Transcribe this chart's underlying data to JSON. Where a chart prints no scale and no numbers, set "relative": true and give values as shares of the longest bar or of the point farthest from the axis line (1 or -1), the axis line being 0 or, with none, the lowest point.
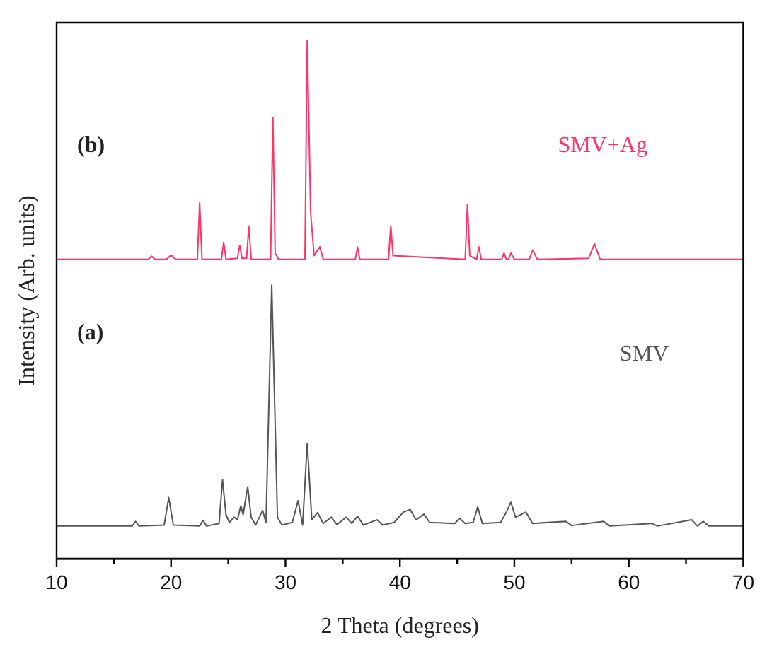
{
  "chart_data": {
    "type": "line",
    "xlabel": "2 Theta (degrees)",
    "ylabel": "Intensity (Arb. units)",
    "relative": true,
    "legend": false,
    "grid": false,
    "marker": "none",
    "line_style": "solid",
    "xlim": [
      10,
      70
    ],
    "xticks": [
      10,
      {
        "value": 15,
        "label": null
      },
      20,
      {
        "value": 25,
        "label": null
      },
      30,
      {
        "value": 35,
        "label": null
      },
      40,
      {
        "value": 45,
        "label": null
      },
      50,
      {
        "value": 55,
        "label": null
      },
      60,
      {
        "value": 65,
        "label": null
      },
      70
    ],
    "annotations": [
      "(b)",
      "(a)"
    ],
    "series": [
      {
        "name": "SMV+Ag",
        "color": "#ff3366",
        "x": [
          10,
          18.0,
          18.3,
          18.6,
          19.6,
          20.0,
          20.4,
          22.3,
          22.5,
          22.7,
          24.4,
          24.6,
          24.8,
          25.8,
          26.0,
          26.2,
          26.6,
          26.8,
          27.0,
          28.7,
          28.9,
          29.1,
          29.4,
          31.7,
          31.9,
          32.2,
          32.5,
          33.0,
          33.3,
          36.1,
          36.3,
          36.5,
          39.0,
          39.2,
          39.4,
          45.7,
          45.9,
          46.1,
          46.7,
          46.9,
          47.1,
          48.9,
          49.1,
          49.3,
          49.5,
          49.7,
          50.0,
          51.3,
          51.6,
          52.0,
          56.5,
          57.0,
          57.5,
          70
        ],
        "values": [
          0.578,
          0.578,
          0.584,
          0.578,
          0.578,
          0.586,
          0.578,
          0.578,
          0.687,
          0.578,
          0.578,
          0.611,
          0.578,
          0.58,
          0.605,
          0.58,
          0.58,
          0.642,
          0.578,
          0.578,
          0.851,
          0.59,
          0.578,
          0.578,
          1.0,
          0.669,
          0.585,
          0.602,
          0.578,
          0.578,
          0.602,
          0.578,
          0.578,
          0.642,
          0.585,
          0.578,
          0.684,
          0.585,
          0.578,
          0.602,
          0.578,
          0.578,
          0.59,
          0.578,
          0.578,
          0.59,
          0.578,
          0.578,
          0.596,
          0.578,
          0.58,
          0.608,
          0.578,
          0.578
        ]
      },
      {
        "name": "SMV",
        "color": "#555555",
        "x": [
          10,
          16.6,
          16.9,
          17.2,
          19.4,
          19.8,
          20.2,
          22.5,
          22.8,
          23.1,
          24.2,
          24.5,
          24.8,
          25.1,
          25.5,
          25.8,
          26.1,
          26.3,
          26.7,
          27.0,
          27.4,
          28.0,
          28.3,
          28.8,
          29.3,
          29.7,
          30.6,
          31.1,
          31.5,
          31.9,
          32.3,
          32.8,
          33.3,
          34.0,
          34.5,
          35.3,
          35.8,
          36.3,
          36.8,
          38.0,
          38.5,
          39.5,
          40.3,
          40.9,
          41.4,
          42.1,
          42.6,
          44.8,
          45.2,
          45.7,
          46.4,
          46.8,
          47.2,
          48.8,
          49.3,
          49.7,
          50.1,
          51.0,
          51.6,
          54.5,
          55.0,
          57.8,
          58.3,
          62.0,
          62.5,
          65.5,
          66.0,
          66.5,
          67,
          70
        ],
        "values": [
          0.063,
          0.063,
          0.072,
          0.063,
          0.065,
          0.118,
          0.065,
          0.063,
          0.074,
          0.063,
          0.068,
          0.152,
          0.085,
          0.07,
          0.08,
          0.075,
          0.102,
          0.085,
          0.139,
          0.08,
          0.065,
          0.093,
          0.07,
          0.528,
          0.08,
          0.065,
          0.07,
          0.112,
          0.065,
          0.223,
          0.075,
          0.089,
          0.068,
          0.08,
          0.066,
          0.08,
          0.068,
          0.082,
          0.065,
          0.075,
          0.065,
          0.07,
          0.09,
          0.095,
          0.075,
          0.086,
          0.07,
          0.068,
          0.078,
          0.068,
          0.07,
          0.1,
          0.068,
          0.07,
          0.09,
          0.109,
          0.08,
          0.09,
          0.068,
          0.072,
          0.064,
          0.072,
          0.063,
          0.068,
          0.063,
          0.075,
          0.063,
          0.072,
          0.063,
          0.063
        ]
      }
    ]
  }
}
